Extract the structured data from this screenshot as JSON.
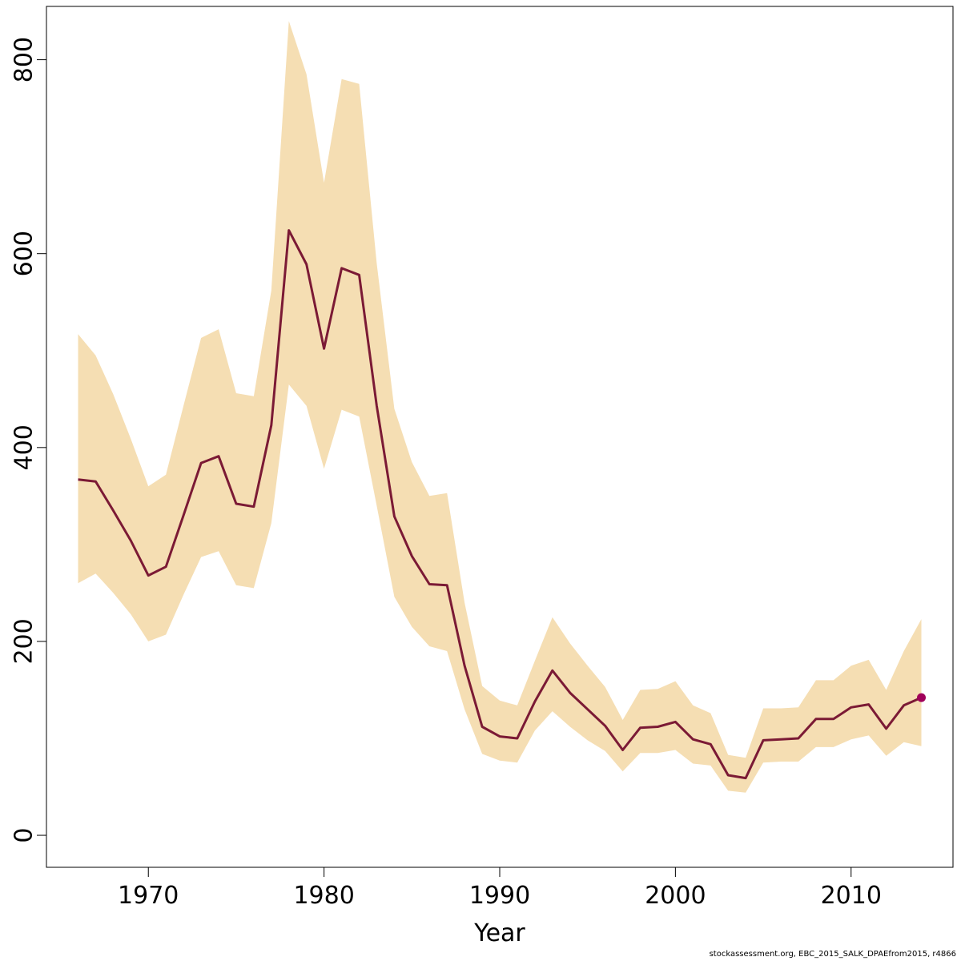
{
  "chart_data": {
    "type": "line",
    "title": "",
    "xlabel": "Year",
    "ylabel": "",
    "xlim": [
      1964.2,
      2015.8
    ],
    "ylim": [
      -33,
      855
    ],
    "x_ticks": [
      1970,
      1980,
      1990,
      2000,
      2010
    ],
    "y_ticks": [
      0,
      200,
      400,
      600,
      800
    ],
    "grid": false,
    "legend": "none",
    "colors": {
      "line": "#7b1a35",
      "band": "#f5deb3",
      "point": "#a0005a",
      "axis": "#000000"
    },
    "x": [
      1966,
      1967,
      1968,
      1969,
      1970,
      1971,
      1972,
      1973,
      1974,
      1975,
      1976,
      1977,
      1978,
      1979,
      1980,
      1981,
      1982,
      1983,
      1984,
      1985,
      1986,
      1987,
      1988,
      1989,
      1990,
      1991,
      1992,
      1993,
      1994,
      1995,
      1996,
      1997,
      1998,
      1999,
      2000,
      2001,
      2002,
      2003,
      2004,
      2005,
      2006,
      2007,
      2008,
      2009,
      2010,
      2011,
      2012,
      2013,
      2014
    ],
    "series": [
      {
        "values": [
          367,
          365,
          335,
          304,
          268,
          277,
          330,
          384,
          391,
          342,
          339,
          423,
          624,
          589,
          502,
          585,
          578,
          443,
          329,
          288,
          259,
          258,
          175,
          112,
          102,
          100,
          138,
          170,
          147,
          130,
          113,
          88,
          111,
          112,
          117,
          99,
          94,
          62,
          59,
          98,
          99,
          100,
          120,
          120,
          132,
          135,
          110,
          134,
          142
        ],
        "lower": [
          260,
          270,
          250,
          228,
          200,
          207,
          248,
          287,
          293,
          258,
          255,
          322,
          465,
          443,
          378,
          439,
          432,
          340,
          246,
          215,
          195,
          190,
          130,
          84,
          77,
          75,
          108,
          128,
          112,
          98,
          87,
          66,
          85,
          85,
          88,
          74,
          72,
          46,
          44,
          75,
          76,
          76,
          91,
          91,
          99,
          103,
          82,
          96,
          92
        ],
        "upper": [
          517,
          495,
          455,
          409,
          360,
          372,
          443,
          513,
          522,
          456,
          453,
          562,
          840,
          785,
          673,
          780,
          775,
          590,
          440,
          385,
          350,
          353,
          240,
          154,
          139,
          134,
          180,
          225,
          198,
          175,
          153,
          119,
          150,
          151,
          159,
          134,
          126,
          83,
          80,
          131,
          131,
          132,
          160,
          160,
          175,
          181,
          150,
          190,
          223
        ]
      }
    ],
    "highlight_point": {
      "x": 2014,
      "y": 142
    }
  },
  "footer": {
    "text": "stockassessment.org, EBC_2015_SALK_DPAEfrom2015, r4866"
  }
}
